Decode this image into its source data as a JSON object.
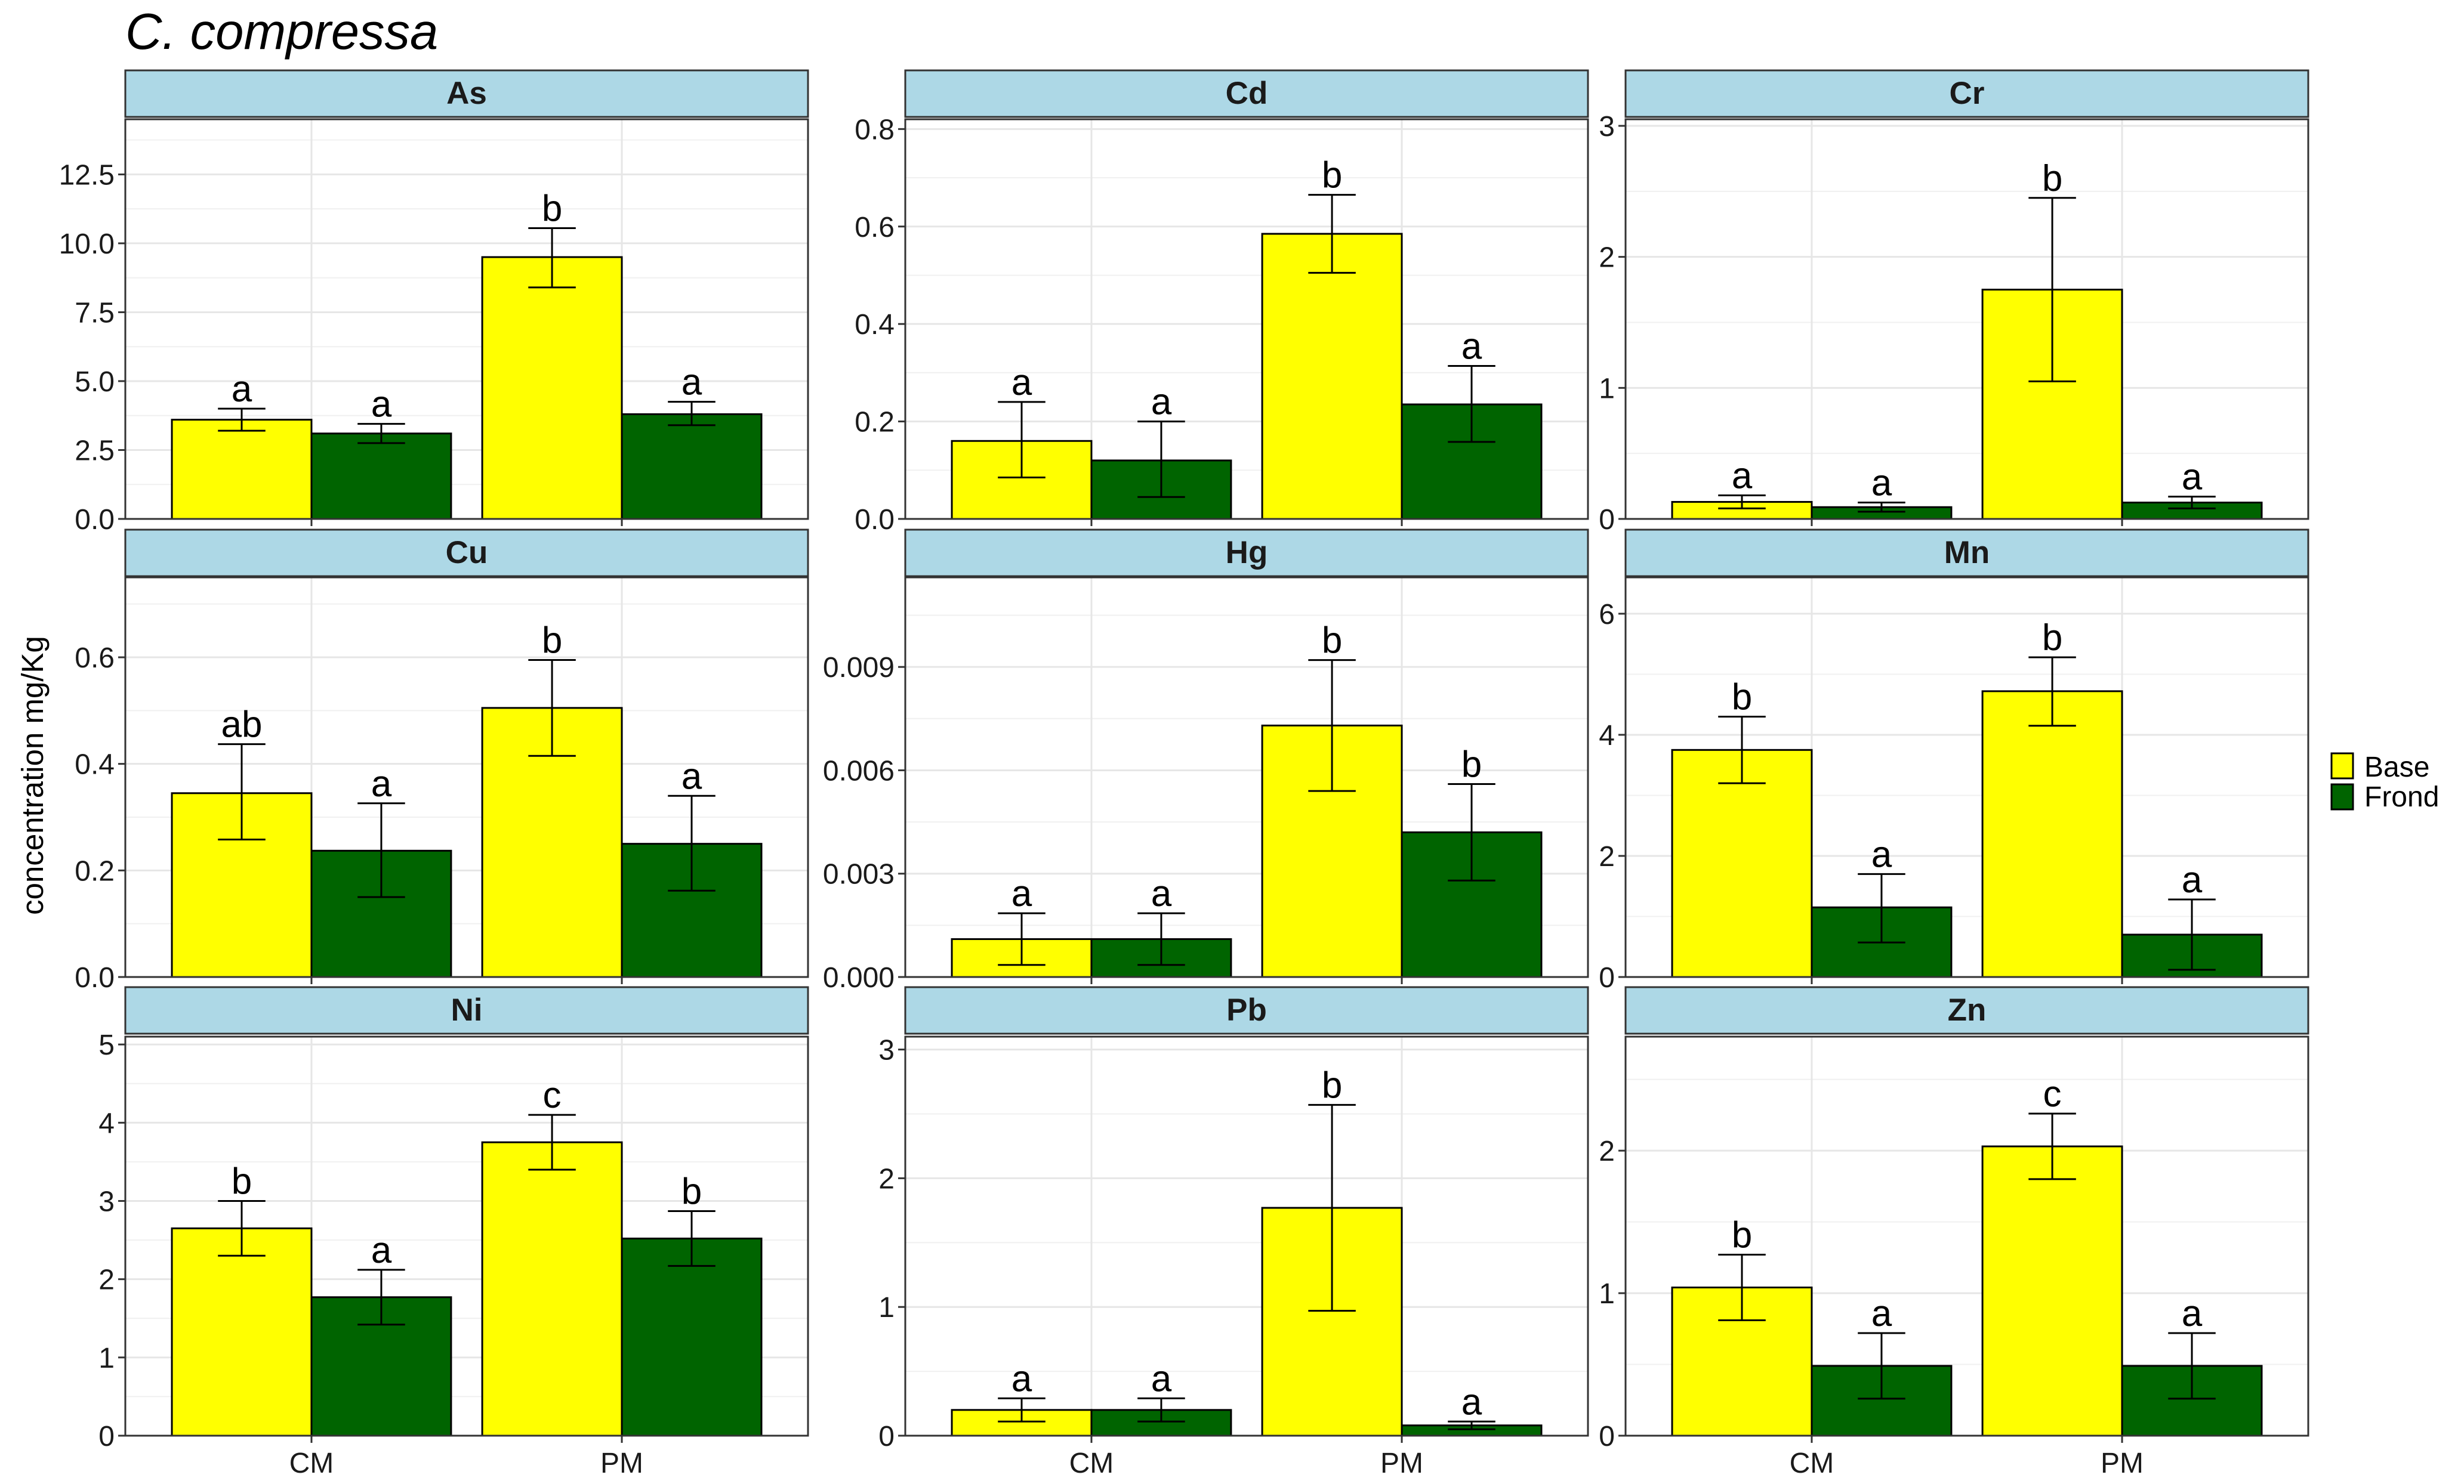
{
  "chart_data": {
    "type": "bar",
    "title": "C. compressa",
    "ylabel": "concentration mg/Kg",
    "xlabel": "",
    "categories": [
      "CM",
      "PM"
    ],
    "legend": {
      "position": "right",
      "entries": [
        {
          "name": "Base",
          "color": "#ffff00"
        },
        {
          "name": "Frond",
          "color": "#006400"
        }
      ]
    },
    "series_colors": {
      "Base": "#ffff00",
      "Frond": "#006400"
    },
    "panels": [
      {
        "element": "As",
        "ylim": [
          0,
          14.5
        ],
        "ticks": [
          0,
          2.5,
          5,
          7.5,
          10,
          12.5
        ],
        "tick_labels": [
          "0.0",
          "2.5",
          "5.0",
          "7.5",
          "10.0",
          "12.5"
        ],
        "bars": [
          {
            "site": "CM",
            "series": "Base",
            "value": 3.6,
            "lo": 3.2,
            "hi": 4.0,
            "letter": "a"
          },
          {
            "site": "CM",
            "series": "Frond",
            "value": 3.1,
            "lo": 2.75,
            "hi": 3.45,
            "letter": "a"
          },
          {
            "site": "PM",
            "series": "Base",
            "value": 9.5,
            "lo": 8.4,
            "hi": 10.55,
            "letter": "b"
          },
          {
            "site": "PM",
            "series": "Frond",
            "value": 3.8,
            "lo": 3.4,
            "hi": 4.25,
            "letter": "a"
          }
        ]
      },
      {
        "element": "Cd",
        "ylim": [
          0,
          0.82
        ],
        "ticks": [
          0,
          0.2,
          0.4,
          0.6,
          0.8
        ],
        "tick_labels": [
          "0.0",
          "0.2",
          "0.4",
          "0.6",
          "0.8"
        ],
        "bars": [
          {
            "site": "CM",
            "series": "Base",
            "value": 0.16,
            "lo": 0.085,
            "hi": 0.24,
            "letter": "a"
          },
          {
            "site": "CM",
            "series": "Frond",
            "value": 0.12,
            "lo": 0.045,
            "hi": 0.2,
            "letter": "a"
          },
          {
            "site": "PM",
            "series": "Base",
            "value": 0.585,
            "lo": 0.505,
            "hi": 0.665,
            "letter": "b"
          },
          {
            "site": "PM",
            "series": "Frond",
            "value": 0.235,
            "lo": 0.158,
            "hi": 0.314,
            "letter": "a"
          }
        ]
      },
      {
        "element": "Cr",
        "ylim": [
          0,
          3.05
        ],
        "ticks": [
          0,
          1,
          2,
          3
        ],
        "tick_labels": [
          "0",
          "1",
          "2",
          "3"
        ],
        "bars": [
          {
            "site": "CM",
            "series": "Base",
            "value": 0.13,
            "lo": 0.08,
            "hi": 0.18,
            "letter": "a"
          },
          {
            "site": "CM",
            "series": "Frond",
            "value": 0.09,
            "lo": 0.055,
            "hi": 0.125,
            "letter": "a"
          },
          {
            "site": "PM",
            "series": "Base",
            "value": 1.75,
            "lo": 1.05,
            "hi": 2.45,
            "letter": "b"
          },
          {
            "site": "PM",
            "series": "Frond",
            "value": 0.125,
            "lo": 0.08,
            "hi": 0.17,
            "letter": "a"
          }
        ]
      },
      {
        "element": "Cu",
        "ylim": [
          0,
          0.75
        ],
        "ticks": [
          0,
          0.2,
          0.4,
          0.6
        ],
        "tick_labels": [
          "0.0",
          "0.2",
          "0.4",
          "0.6"
        ],
        "bars": [
          {
            "site": "CM",
            "series": "Base",
            "value": 0.345,
            "lo": 0.258,
            "hi": 0.437,
            "letter": "ab"
          },
          {
            "site": "CM",
            "series": "Frond",
            "value": 0.237,
            "lo": 0.15,
            "hi": 0.326,
            "letter": "a"
          },
          {
            "site": "PM",
            "series": "Base",
            "value": 0.505,
            "lo": 0.415,
            "hi": 0.595,
            "letter": "b"
          },
          {
            "site": "PM",
            "series": "Frond",
            "value": 0.25,
            "lo": 0.162,
            "hi": 0.34,
            "letter": "a"
          }
        ]
      },
      {
        "element": "Hg",
        "ylim": [
          0,
          0.0116
        ],
        "ticks": [
          0,
          0.003,
          0.006,
          0.009
        ],
        "tick_labels": [
          "0.000",
          "0.003",
          "0.006",
          "0.009"
        ],
        "bars": [
          {
            "site": "CM",
            "series": "Base",
            "value": 0.0011,
            "lo": 0.00035,
            "hi": 0.00185,
            "letter": "a"
          },
          {
            "site": "CM",
            "series": "Frond",
            "value": 0.0011,
            "lo": 0.00035,
            "hi": 0.00185,
            "letter": "a"
          },
          {
            "site": "PM",
            "series": "Base",
            "value": 0.0073,
            "lo": 0.0054,
            "hi": 0.0092,
            "letter": "b"
          },
          {
            "site": "PM",
            "series": "Frond",
            "value": 0.0042,
            "lo": 0.0028,
            "hi": 0.0056,
            "letter": "b"
          }
        ]
      },
      {
        "element": "Mn",
        "ylim": [
          0,
          6.6
        ],
        "ticks": [
          0,
          2,
          4,
          6
        ],
        "tick_labels": [
          "0",
          "2",
          "4",
          "6"
        ],
        "bars": [
          {
            "site": "CM",
            "series": "Base",
            "value": 3.75,
            "lo": 3.2,
            "hi": 4.3,
            "letter": "b"
          },
          {
            "site": "CM",
            "series": "Frond",
            "value": 1.15,
            "lo": 0.57,
            "hi": 1.7,
            "letter": "a"
          },
          {
            "site": "PM",
            "series": "Base",
            "value": 4.72,
            "lo": 4.15,
            "hi": 5.28,
            "letter": "b"
          },
          {
            "site": "PM",
            "series": "Frond",
            "value": 0.7,
            "lo": 0.12,
            "hi": 1.28,
            "letter": "a"
          }
        ]
      },
      {
        "element": "Ni",
        "ylim": [
          0,
          5.1
        ],
        "ticks": [
          0,
          1,
          2,
          3,
          4,
          5
        ],
        "tick_labels": [
          "0",
          "1",
          "2",
          "3",
          "4",
          "5"
        ],
        "bars": [
          {
            "site": "CM",
            "series": "Base",
            "value": 2.65,
            "lo": 2.3,
            "hi": 3.0,
            "letter": "b"
          },
          {
            "site": "CM",
            "series": "Frond",
            "value": 1.77,
            "lo": 1.42,
            "hi": 2.12,
            "letter": "a"
          },
          {
            "site": "PM",
            "series": "Base",
            "value": 3.75,
            "lo": 3.4,
            "hi": 4.1,
            "letter": "c"
          },
          {
            "site": "PM",
            "series": "Frond",
            "value": 2.52,
            "lo": 2.17,
            "hi": 2.87,
            "letter": "b"
          }
        ]
      },
      {
        "element": "Pb",
        "ylim": [
          0,
          3.1
        ],
        "ticks": [
          0,
          1,
          2,
          3
        ],
        "tick_labels": [
          "0",
          "1",
          "2",
          "3"
        ],
        "bars": [
          {
            "site": "CM",
            "series": "Base",
            "value": 0.2,
            "lo": 0.11,
            "hi": 0.29,
            "letter": "a"
          },
          {
            "site": "CM",
            "series": "Frond",
            "value": 0.2,
            "lo": 0.11,
            "hi": 0.29,
            "letter": "a"
          },
          {
            "site": "PM",
            "series": "Base",
            "value": 1.77,
            "lo": 0.97,
            "hi": 2.57,
            "letter": "b"
          },
          {
            "site": "PM",
            "series": "Frond",
            "value": 0.08,
            "lo": 0.05,
            "hi": 0.11,
            "letter": "a"
          }
        ]
      },
      {
        "element": "Zn",
        "ylim": [
          0,
          2.8
        ],
        "ticks": [
          0,
          1,
          2
        ],
        "tick_labels": [
          "0",
          "1",
          "2"
        ],
        "bars": [
          {
            "site": "CM",
            "series": "Base",
            "value": 1.04,
            "lo": 0.81,
            "hi": 1.27,
            "letter": "b"
          },
          {
            "site": "CM",
            "series": "Frond",
            "value": 0.49,
            "lo": 0.26,
            "hi": 0.72,
            "letter": "a"
          },
          {
            "site": "PM",
            "series": "Base",
            "value": 2.03,
            "lo": 1.8,
            "hi": 2.26,
            "letter": "c"
          },
          {
            "site": "PM",
            "series": "Frond",
            "value": 0.49,
            "lo": 0.26,
            "hi": 0.72,
            "letter": "a"
          }
        ]
      }
    ]
  }
}
